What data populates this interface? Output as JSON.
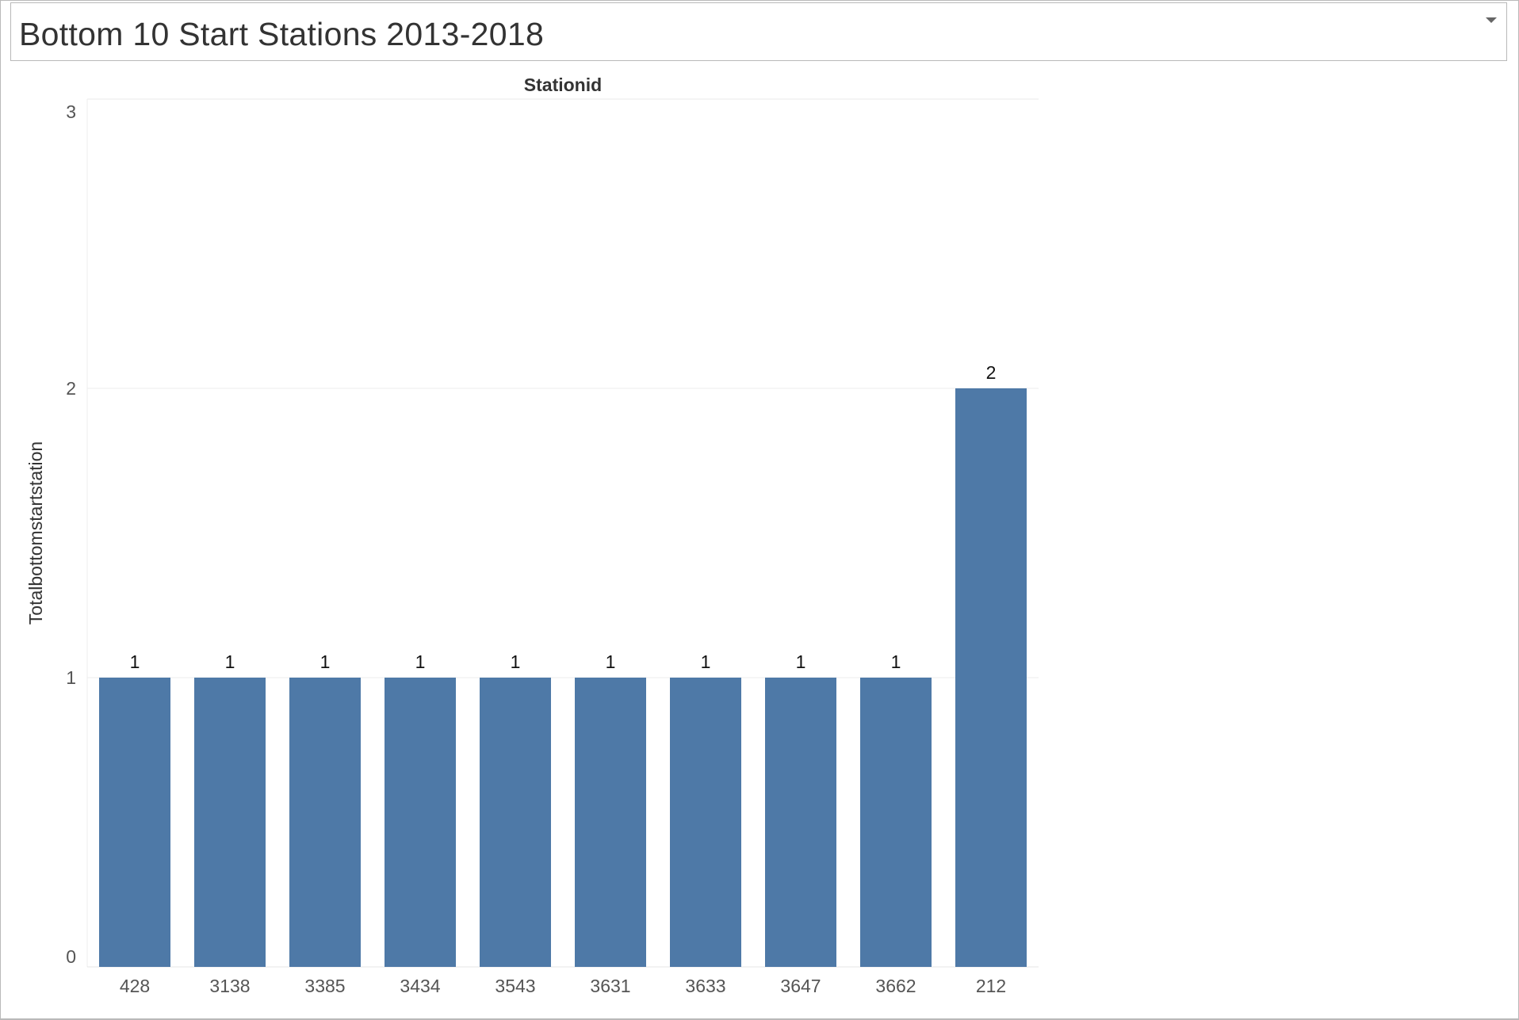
{
  "title": "Bottom 10 Start Stations 2013-2018",
  "chart_data": {
    "type": "bar",
    "title": "Bottom 10 Start Stations 2013-2018",
    "xlabel": "Stationid",
    "ylabel": "Totalbottomstartstation",
    "categories": [
      "428",
      "3138",
      "3385",
      "3434",
      "3543",
      "3631",
      "3633",
      "3647",
      "3662",
      "212"
    ],
    "values": [
      1,
      1,
      1,
      1,
      1,
      1,
      1,
      1,
      1,
      2
    ],
    "ylim": [
      0,
      3
    ],
    "yticks": [
      "0",
      "1",
      "2",
      "3"
    ],
    "data_labels": true,
    "grid": "horizontal",
    "legend": "none",
    "bar_color": "#4e79a7"
  }
}
